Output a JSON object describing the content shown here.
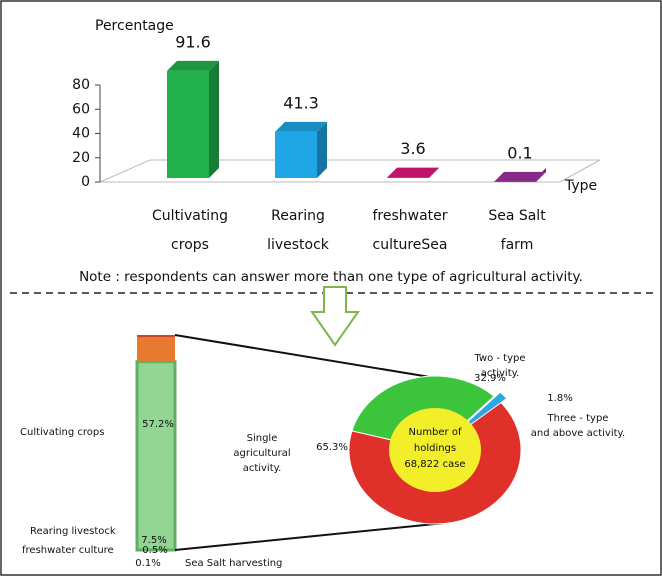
{
  "chart_data": [
    {
      "type": "bar3d",
      "ylabel": "Percentage",
      "xlabel": "Type",
      "categories": [
        [
          "Cultivating",
          "crops"
        ],
        [
          "Rearing",
          "livestock"
        ],
        [
          "freshwater",
          "cultureSea"
        ],
        [
          "Sea Salt",
          "farm"
        ]
      ],
      "values": [
        91.6,
        41.3,
        3.6,
        0.1
      ],
      "colors": [
        "#22b14c",
        "#1ea6e6",
        "#e0197d",
        "#a030a0"
      ],
      "ylim": [
        0,
        80
      ],
      "yticks": [
        0,
        20,
        40,
        60,
        80
      ],
      "note": "Note : respondents can answer  more than one type of agricultural activity."
    },
    {
      "type": "bar-of-pie",
      "categories": [
        "Cultivating  crops",
        "Rearing livestock",
        "freshwater culture",
        "Sea Salt harvesting"
      ],
      "values": [
        57.2,
        7.5,
        0.5,
        0.1
      ],
      "value_labels": [
        "57.2%",
        "7.5%",
        "0.5%",
        "0.1%"
      ],
      "colors": [
        "#93d593",
        "#e87a30",
        "#c8402a",
        "#a01010"
      ],
      "pie_categories": [
        [
          "Single",
          "agricultural",
          "activity."
        ],
        [
          "Two - type",
          "activity."
        ],
        [
          "Three - type",
          "and above activity."
        ]
      ],
      "pie_values": [
        65.3,
        32.9,
        1.8
      ],
      "pie_value_labels": [
        "65.3%",
        "32.9%",
        "1.8%"
      ],
      "pie_colors": [
        "#e0302a",
        "#3cc43c",
        "#2aa8e0"
      ],
      "center_label": [
        "Number of",
        "holdings",
        "68,822 case"
      ]
    }
  ]
}
